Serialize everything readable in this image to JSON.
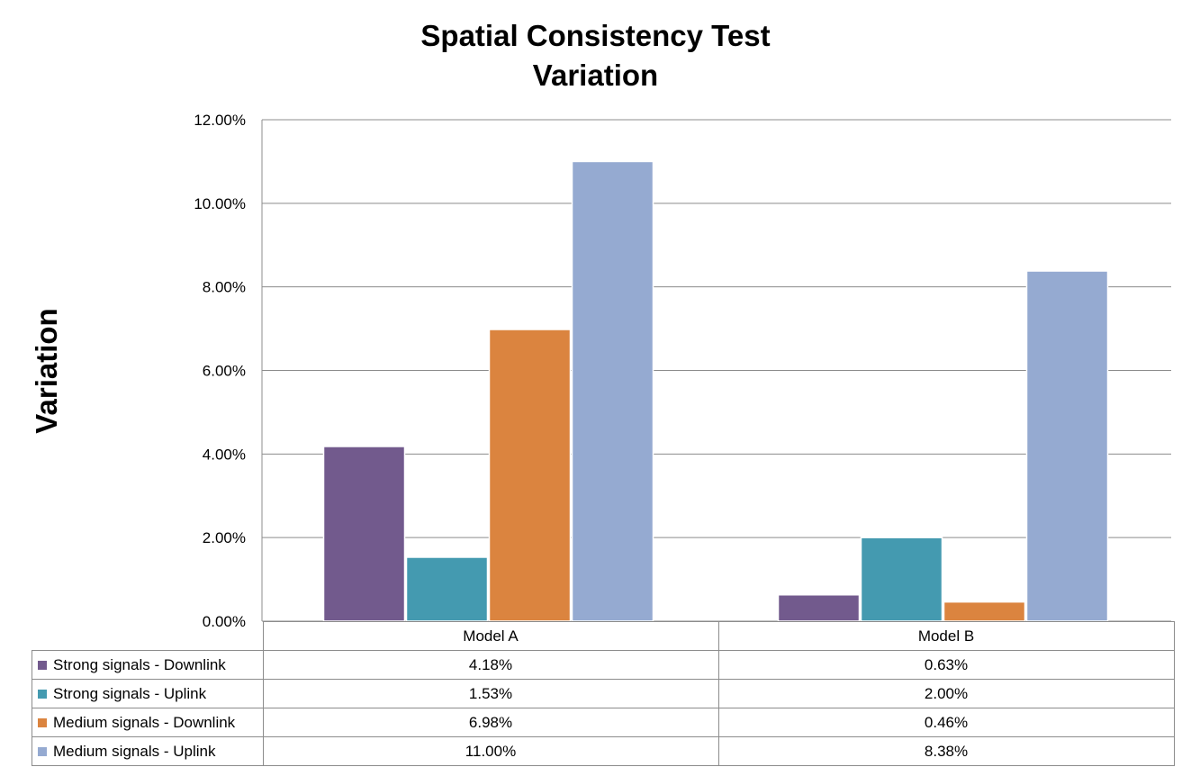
{
  "chart_data": {
    "type": "bar",
    "title": [
      "Spatial Consistency Test",
      "Variation"
    ],
    "xlabel": "",
    "ylabel": "Variation",
    "ylim": [
      0,
      12
    ],
    "yticks": [
      "0.00%",
      "2.00%",
      "4.00%",
      "6.00%",
      "8.00%",
      "10.00%",
      "12.00%"
    ],
    "categories": [
      "Model A",
      "Model B"
    ],
    "grid": true,
    "legend": "data-table",
    "series": [
      {
        "name": "Strong signals - Downlink",
        "color": "#725a8d",
        "values": [
          4.18,
          0.63
        ],
        "labels": [
          "4.18%",
          "0.63%"
        ]
      },
      {
        "name": "Strong signals - Uplink",
        "color": "#449ab0",
        "values": [
          1.53,
          2.0
        ],
        "labels": [
          "1.53%",
          "2.00%"
        ]
      },
      {
        "name": "Medium signals - Downlink",
        "color": "#db843f",
        "values": [
          6.98,
          0.46
        ],
        "labels": [
          "6.98%",
          "0.46%"
        ]
      },
      {
        "name": "Medium signals - Uplink",
        "color": "#95aad1",
        "values": [
          11.0,
          8.38
        ],
        "labels": [
          "11.00%",
          "8.38%"
        ]
      }
    ]
  }
}
